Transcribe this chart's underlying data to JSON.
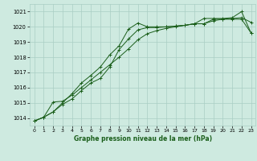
{
  "x_ticks": [
    0,
    1,
    2,
    3,
    4,
    5,
    6,
    7,
    8,
    9,
    10,
    11,
    12,
    13,
    14,
    15,
    16,
    17,
    18,
    19,
    20,
    21,
    22,
    23
  ],
  "series1": {
    "x": [
      0,
      1,
      2,
      3,
      4,
      5,
      6,
      7,
      8,
      9,
      10,
      11,
      12,
      13,
      14,
      15,
      16,
      17,
      18,
      19,
      20,
      21,
      22,
      23
    ],
    "y": [
      1013.8,
      1014.05,
      1014.4,
      1014.9,
      1015.25,
      1015.8,
      1016.3,
      1016.6,
      1017.35,
      1018.5,
      1019.2,
      1019.8,
      1019.95,
      1019.95,
      1020.0,
      1020.05,
      1020.1,
      1020.2,
      1020.2,
      1020.5,
      1020.5,
      1020.55,
      1020.6,
      1020.3
    ]
  },
  "series2": {
    "x": [
      0,
      1,
      2,
      3,
      4,
      5,
      6,
      7,
      8,
      9,
      10,
      11,
      12,
      13,
      14,
      15,
      16,
      17,
      18,
      19,
      20,
      21,
      22,
      23
    ],
    "y": [
      1013.8,
      1014.05,
      1014.4,
      1015.0,
      1015.6,
      1016.3,
      1016.8,
      1017.35,
      1018.15,
      1018.75,
      1019.85,
      1020.25,
      1020.0,
      1020.0,
      1020.0,
      1020.05,
      1020.1,
      1020.2,
      1020.55,
      1020.55,
      1020.55,
      1020.6,
      1021.0,
      1019.6
    ]
  },
  "series3": {
    "x": [
      0,
      1,
      2,
      3,
      4,
      5,
      6,
      7,
      8,
      9,
      10,
      11,
      12,
      13,
      14,
      15,
      16,
      17,
      18,
      19,
      20,
      21,
      22,
      23
    ],
    "y": [
      1013.8,
      1014.05,
      1015.05,
      1015.1,
      1015.5,
      1016.0,
      1016.5,
      1017.0,
      1017.5,
      1018.0,
      1018.55,
      1019.15,
      1019.55,
      1019.75,
      1019.9,
      1020.0,
      1020.1,
      1020.2,
      1020.2,
      1020.4,
      1020.5,
      1020.5,
      1020.5,
      1019.6
    ]
  },
  "background_color": "#ceeae0",
  "grid_color": "#aacec4",
  "line_color": "#1a5e1a",
  "xlabel": "Graphe pression niveau de la mer (hPa)",
  "xlabel_color": "#1a5e1a",
  "ylim": [
    1013.5,
    1021.5
  ],
  "yticks": [
    1014,
    1015,
    1016,
    1017,
    1018,
    1019,
    1020,
    1021
  ],
  "figsize": [
    3.2,
    2.0
  ],
  "dpi": 100
}
